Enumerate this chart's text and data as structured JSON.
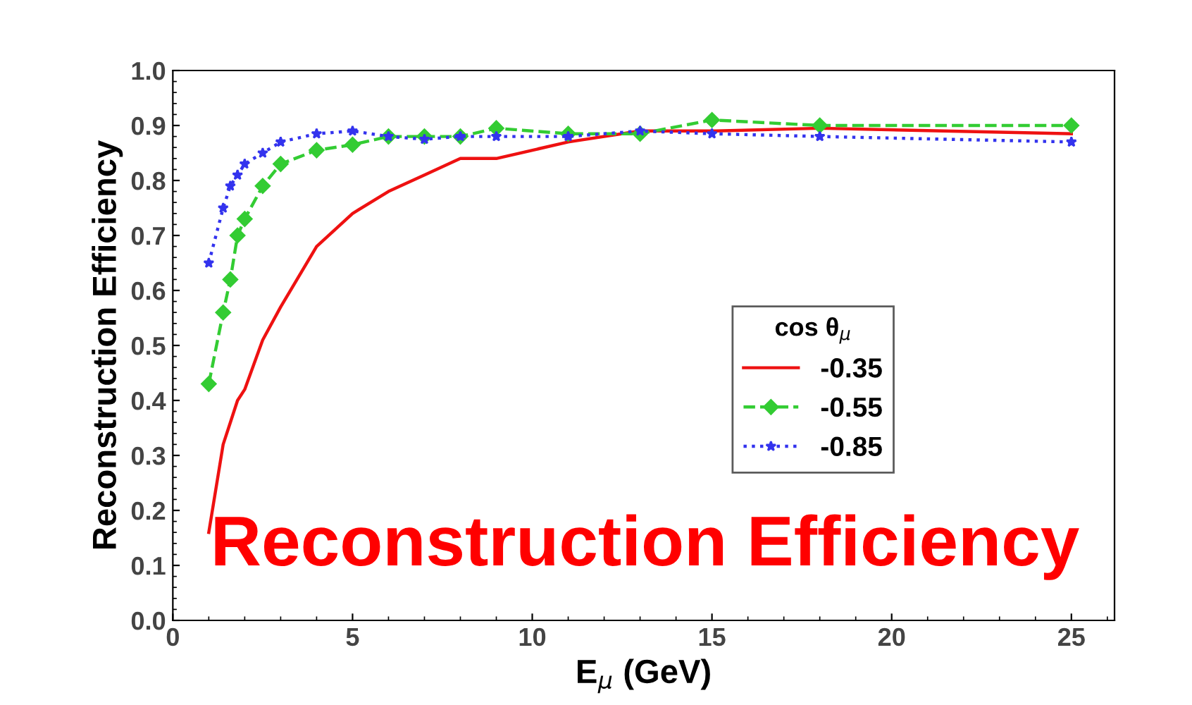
{
  "chart_data": {
    "type": "line",
    "xlabel": "E$_{μ}$ (GeV)",
    "ylabel": "Reconstruction Efficiency",
    "legend_title": "cos θ$_{μ}$",
    "x": [
      1,
      1.4,
      1.6,
      1.8,
      2,
      2.5,
      3,
      4,
      5,
      6,
      7,
      8,
      9,
      11,
      13,
      15,
      18,
      25
    ],
    "series": [
      {
        "name": "-0.35",
        "color": "#ee1111",
        "line_style": "solid",
        "marker": "none",
        "values": [
          0.16,
          0.32,
          0.36,
          0.4,
          0.42,
          0.51,
          0.57,
          0.68,
          0.74,
          0.78,
          0.81,
          0.84,
          0.84,
          0.87,
          0.89,
          0.89,
          0.895,
          0.885
        ]
      },
      {
        "name": "-0.55",
        "color": "#33cc33",
        "line_style": "dashed",
        "marker": "diamond",
        "values": [
          0.43,
          0.56,
          0.62,
          0.7,
          0.73,
          0.79,
          0.83,
          0.855,
          0.865,
          0.88,
          0.88,
          0.88,
          0.895,
          0.885,
          0.885,
          0.91,
          0.9,
          0.9
        ]
      },
      {
        "name": "-0.85",
        "color": "#3333ee",
        "line_style": "dotted",
        "marker": "star",
        "values": [
          0.65,
          0.75,
          0.79,
          0.81,
          0.83,
          0.85,
          0.87,
          0.885,
          0.89,
          0.88,
          0.875,
          0.88,
          0.88,
          0.88,
          0.89,
          0.885,
          0.88,
          0.87
        ]
      }
    ],
    "xlim": [
      0,
      26.2
    ],
    "xticks": [
      0,
      5,
      10,
      15,
      20,
      25
    ],
    "ylim": [
      0,
      1
    ],
    "yticks": [
      {
        "value": 0,
        "label": "0.0"
      },
      0.1,
      0.2,
      0.3,
      0.4,
      0.5,
      0.6,
      0.7,
      0.8,
      0.9,
      {
        "value": 1,
        "label": "1.0"
      }
    ],
    "grid": false,
    "legend": "right",
    "annotations": [
      "Reconstruction Efficiency"
    ]
  }
}
